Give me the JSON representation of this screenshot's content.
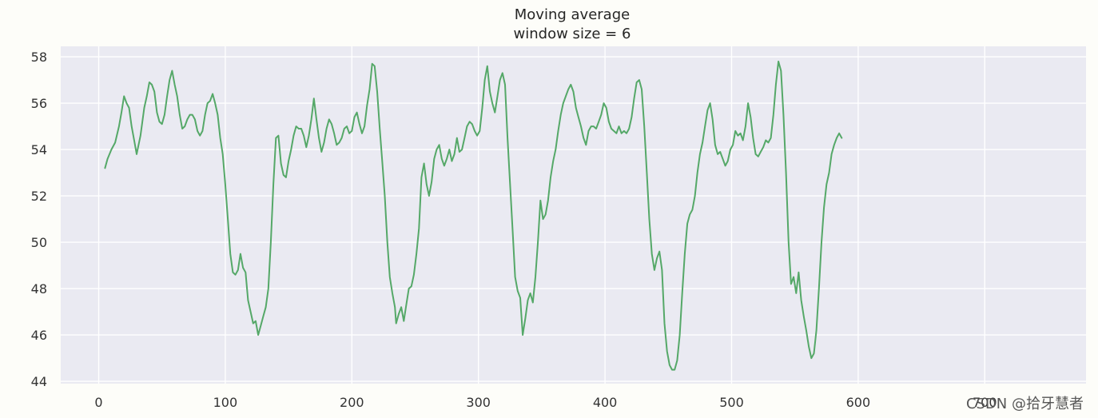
{
  "chart_data": {
    "type": "line",
    "title": "Moving average",
    "subtitle": "window size = 6",
    "xlim": [
      -30,
      780
    ],
    "ylim": [
      43.9,
      58.45
    ],
    "xticks": [
      0,
      100,
      200,
      300,
      400,
      500,
      600,
      700
    ],
    "yticks": [
      44,
      46,
      48,
      50,
      52,
      54,
      56,
      58
    ],
    "grid": true,
    "series": [
      {
        "line_color": "#55a868",
        "points": [
          [
            5,
            53.2
          ],
          [
            7,
            53.6
          ],
          [
            10,
            54.0
          ],
          [
            13,
            54.3
          ],
          [
            16,
            55.0
          ],
          [
            18,
            55.6
          ],
          [
            20,
            56.3
          ],
          [
            22,
            56.0
          ],
          [
            24,
            55.8
          ],
          [
            26,
            55.0
          ],
          [
            28,
            54.4
          ],
          [
            30,
            53.8
          ],
          [
            33,
            54.6
          ],
          [
            36,
            55.8
          ],
          [
            38,
            56.3
          ],
          [
            40,
            56.9
          ],
          [
            42,
            56.8
          ],
          [
            44,
            56.5
          ],
          [
            46,
            55.6
          ],
          [
            48,
            55.2
          ],
          [
            50,
            55.1
          ],
          [
            52,
            55.5
          ],
          [
            54,
            56.3
          ],
          [
            56,
            57.0
          ],
          [
            58,
            57.4
          ],
          [
            60,
            56.8
          ],
          [
            62,
            56.3
          ],
          [
            64,
            55.5
          ],
          [
            66,
            54.9
          ],
          [
            68,
            55.0
          ],
          [
            70,
            55.3
          ],
          [
            72,
            55.5
          ],
          [
            74,
            55.5
          ],
          [
            76,
            55.3
          ],
          [
            78,
            54.8
          ],
          [
            80,
            54.6
          ],
          [
            82,
            54.8
          ],
          [
            84,
            55.5
          ],
          [
            86,
            56.0
          ],
          [
            88,
            56.1
          ],
          [
            90,
            56.4
          ],
          [
            92,
            56.0
          ],
          [
            94,
            55.5
          ],
          [
            96,
            54.5
          ],
          [
            98,
            53.8
          ],
          [
            100,
            52.5
          ],
          [
            102,
            51.0
          ],
          [
            104,
            49.5
          ],
          [
            106,
            48.7
          ],
          [
            108,
            48.6
          ],
          [
            110,
            48.8
          ],
          [
            112,
            49.5
          ],
          [
            114,
            48.9
          ],
          [
            116,
            48.7
          ],
          [
            118,
            47.5
          ],
          [
            120,
            47.0
          ],
          [
            122,
            46.5
          ],
          [
            124,
            46.6
          ],
          [
            126,
            46.0
          ],
          [
            128,
            46.4
          ],
          [
            130,
            46.8
          ],
          [
            132,
            47.2
          ],
          [
            134,
            48.0
          ],
          [
            136,
            50.0
          ],
          [
            138,
            52.5
          ],
          [
            140,
            54.5
          ],
          [
            142,
            54.6
          ],
          [
            144,
            53.4
          ],
          [
            146,
            52.9
          ],
          [
            148,
            52.8
          ],
          [
            150,
            53.5
          ],
          [
            152,
            54.0
          ],
          [
            154,
            54.6
          ],
          [
            156,
            55.0
          ],
          [
            158,
            54.9
          ],
          [
            160,
            54.9
          ],
          [
            162,
            54.6
          ],
          [
            164,
            54.1
          ],
          [
            166,
            54.6
          ],
          [
            168,
            55.3
          ],
          [
            170,
            56.2
          ],
          [
            172,
            55.3
          ],
          [
            174,
            54.5
          ],
          [
            176,
            53.9
          ],
          [
            178,
            54.3
          ],
          [
            180,
            54.9
          ],
          [
            182,
            55.3
          ],
          [
            184,
            55.1
          ],
          [
            186,
            54.7
          ],
          [
            188,
            54.2
          ],
          [
            190,
            54.3
          ],
          [
            192,
            54.5
          ],
          [
            194,
            54.9
          ],
          [
            196,
            55.0
          ],
          [
            198,
            54.7
          ],
          [
            200,
            54.8
          ],
          [
            202,
            55.4
          ],
          [
            204,
            55.6
          ],
          [
            206,
            55.1
          ],
          [
            208,
            54.7
          ],
          [
            210,
            55.0
          ],
          [
            212,
            55.9
          ],
          [
            214,
            56.6
          ],
          [
            216,
            57.7
          ],
          [
            218,
            57.6
          ],
          [
            220,
            56.5
          ],
          [
            222,
            54.9
          ],
          [
            224,
            53.5
          ],
          [
            226,
            52.0
          ],
          [
            228,
            50.0
          ],
          [
            230,
            48.5
          ],
          [
            232,
            47.8
          ],
          [
            234,
            47.2
          ],
          [
            235,
            46.5
          ],
          [
            237,
            46.9
          ],
          [
            239,
            47.2
          ],
          [
            241,
            46.6
          ],
          [
            243,
            47.3
          ],
          [
            245,
            48.0
          ],
          [
            247,
            48.1
          ],
          [
            249,
            48.6
          ],
          [
            251,
            49.5
          ],
          [
            253,
            50.6
          ],
          [
            255,
            52.8
          ],
          [
            257,
            53.4
          ],
          [
            259,
            52.5
          ],
          [
            261,
            52.0
          ],
          [
            263,
            52.6
          ],
          [
            265,
            53.6
          ],
          [
            267,
            54.0
          ],
          [
            269,
            54.2
          ],
          [
            271,
            53.6
          ],
          [
            273,
            53.3
          ],
          [
            275,
            53.6
          ],
          [
            277,
            54.0
          ],
          [
            279,
            53.5
          ],
          [
            281,
            53.8
          ],
          [
            283,
            54.5
          ],
          [
            285,
            53.9
          ],
          [
            287,
            54.0
          ],
          [
            289,
            54.5
          ],
          [
            291,
            55.0
          ],
          [
            293,
            55.2
          ],
          [
            295,
            55.1
          ],
          [
            297,
            54.8
          ],
          [
            299,
            54.6
          ],
          [
            301,
            54.8
          ],
          [
            303,
            55.8
          ],
          [
            305,
            57.0
          ],
          [
            307,
            57.6
          ],
          [
            309,
            56.5
          ],
          [
            311,
            56.0
          ],
          [
            313,
            55.6
          ],
          [
            315,
            56.3
          ],
          [
            317,
            57.0
          ],
          [
            319,
            57.3
          ],
          [
            321,
            56.8
          ],
          [
            323,
            54.5
          ],
          [
            325,
            52.5
          ],
          [
            327,
            50.5
          ],
          [
            329,
            48.5
          ],
          [
            331,
            47.9
          ],
          [
            333,
            47.6
          ],
          [
            335,
            46.0
          ],
          [
            337,
            46.7
          ],
          [
            339,
            47.5
          ],
          [
            341,
            47.8
          ],
          [
            343,
            47.4
          ],
          [
            345,
            48.5
          ],
          [
            347,
            50.0
          ],
          [
            349,
            51.8
          ],
          [
            351,
            51.0
          ],
          [
            353,
            51.2
          ],
          [
            355,
            51.8
          ],
          [
            357,
            52.8
          ],
          [
            359,
            53.5
          ],
          [
            361,
            54.0
          ],
          [
            363,
            54.8
          ],
          [
            365,
            55.5
          ],
          [
            367,
            56.0
          ],
          [
            369,
            56.3
          ],
          [
            371,
            56.6
          ],
          [
            373,
            56.8
          ],
          [
            375,
            56.5
          ],
          [
            377,
            55.8
          ],
          [
            379,
            55.4
          ],
          [
            381,
            55.0
          ],
          [
            383,
            54.5
          ],
          [
            385,
            54.2
          ],
          [
            387,
            54.8
          ],
          [
            389,
            55.0
          ],
          [
            391,
            55.0
          ],
          [
            393,
            54.9
          ],
          [
            395,
            55.2
          ],
          [
            397,
            55.5
          ],
          [
            399,
            56.0
          ],
          [
            401,
            55.8
          ],
          [
            403,
            55.2
          ],
          [
            405,
            54.9
          ],
          [
            407,
            54.8
          ],
          [
            409,
            54.7
          ],
          [
            411,
            55.0
          ],
          [
            413,
            54.7
          ],
          [
            415,
            54.8
          ],
          [
            417,
            54.7
          ],
          [
            419,
            54.9
          ],
          [
            421,
            55.4
          ],
          [
            423,
            56.2
          ],
          [
            425,
            56.9
          ],
          [
            427,
            57.0
          ],
          [
            429,
            56.6
          ],
          [
            431,
            55.0
          ],
          [
            433,
            53.0
          ],
          [
            435,
            51.0
          ],
          [
            437,
            49.5
          ],
          [
            439,
            48.8
          ],
          [
            441,
            49.3
          ],
          [
            443,
            49.6
          ],
          [
            445,
            48.8
          ],
          [
            447,
            46.5
          ],
          [
            449,
            45.3
          ],
          [
            451,
            44.7
          ],
          [
            453,
            44.5
          ],
          [
            455,
            44.5
          ],
          [
            457,
            44.9
          ],
          [
            459,
            46.0
          ],
          [
            461,
            47.8
          ],
          [
            463,
            49.5
          ],
          [
            465,
            50.8
          ],
          [
            467,
            51.2
          ],
          [
            469,
            51.4
          ],
          [
            471,
            52.0
          ],
          [
            473,
            53.0
          ],
          [
            475,
            53.8
          ],
          [
            477,
            54.3
          ],
          [
            479,
            55.0
          ],
          [
            481,
            55.7
          ],
          [
            483,
            56.0
          ],
          [
            485,
            55.3
          ],
          [
            487,
            54.2
          ],
          [
            489,
            53.8
          ],
          [
            491,
            53.9
          ],
          [
            493,
            53.6
          ],
          [
            495,
            53.3
          ],
          [
            497,
            53.5
          ],
          [
            499,
            54.0
          ],
          [
            501,
            54.2
          ],
          [
            503,
            54.8
          ],
          [
            505,
            54.6
          ],
          [
            507,
            54.7
          ],
          [
            509,
            54.4
          ],
          [
            511,
            55.0
          ],
          [
            513,
            56.0
          ],
          [
            515,
            55.4
          ],
          [
            517,
            54.5
          ],
          [
            519,
            53.8
          ],
          [
            521,
            53.7
          ],
          [
            523,
            53.9
          ],
          [
            525,
            54.1
          ],
          [
            527,
            54.4
          ],
          [
            529,
            54.3
          ],
          [
            531,
            54.5
          ],
          [
            533,
            55.5
          ],
          [
            535,
            56.8
          ],
          [
            537,
            57.8
          ],
          [
            539,
            57.4
          ],
          [
            541,
            55.5
          ],
          [
            543,
            53.0
          ],
          [
            545,
            50.0
          ],
          [
            547,
            48.2
          ],
          [
            549,
            48.5
          ],
          [
            551,
            47.8
          ],
          [
            553,
            48.7
          ],
          [
            555,
            47.5
          ],
          [
            557,
            46.8
          ],
          [
            559,
            46.2
          ],
          [
            561,
            45.5
          ],
          [
            563,
            45.0
          ],
          [
            565,
            45.2
          ],
          [
            567,
            46.2
          ],
          [
            569,
            48.0
          ],
          [
            571,
            50.0
          ],
          [
            573,
            51.5
          ],
          [
            575,
            52.5
          ],
          [
            577,
            53.0
          ],
          [
            579,
            53.8
          ],
          [
            581,
            54.2
          ],
          [
            583,
            54.5
          ],
          [
            585,
            54.7
          ],
          [
            587,
            54.5
          ]
        ]
      }
    ]
  },
  "watermark": "CSDN @拾牙慧者"
}
